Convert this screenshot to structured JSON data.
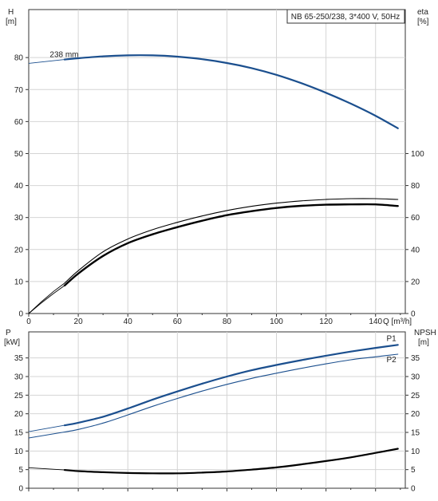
{
  "chart_data": [
    {
      "type": "line",
      "title": "NB 65-250/238, 3*400 V, 50Hz",
      "xlabel": "Q [m³/h]",
      "xlim": [
        0,
        152
      ],
      "xticks": [
        0,
        20,
        40,
        60,
        80,
        100,
        120,
        140
      ],
      "grid": true,
      "left_axis": {
        "label_top": "H",
        "label_unit": "[m]",
        "ylim": [
          0,
          95
        ],
        "ticks": [
          0,
          10,
          20,
          30,
          40,
          50,
          60,
          70,
          80
        ]
      },
      "right_axis": {
        "label_top": "eta",
        "label_unit": "[%]",
        "ylim": [
          0,
          190
        ],
        "ticks": [
          0,
          20,
          40,
          60,
          80,
          100
        ]
      },
      "series": [
        {
          "name": "238 mm",
          "axis": "left",
          "color": "#1b4f8e",
          "width": 2.2,
          "style": "bold-from-start",
          "thin_points": [
            [
              0,
              78.2
            ],
            [
              14.5,
              79.4
            ]
          ],
          "points": [
            [
              14.5,
              79.4
            ],
            [
              20,
              79.8
            ],
            [
              30,
              80.4
            ],
            [
              40,
              80.7
            ],
            [
              50,
              80.7
            ],
            [
              60,
              80.3
            ],
            [
              70,
              79.5
            ],
            [
              80,
              78.3
            ],
            [
              90,
              76.7
            ],
            [
              100,
              74.6
            ],
            [
              110,
              72.0
            ],
            [
              120,
              69.0
            ],
            [
              130,
              65.6
            ],
            [
              140,
              61.8
            ],
            [
              149,
              57.9
            ]
          ]
        },
        {
          "axis": "right",
          "color": "#000000",
          "width": 2.4,
          "thin_points": [
            [
              0,
              0
            ],
            [
              5,
              6.5
            ],
            [
              10,
              12.5
            ],
            [
              14.5,
              17.5
            ]
          ],
          "points": [
            [
              14.5,
              17.5
            ],
            [
              20,
              25
            ],
            [
              30,
              36
            ],
            [
              40,
              44
            ],
            [
              50,
              49.5
            ],
            [
              60,
              54
            ],
            [
              70,
              58
            ],
            [
              80,
              61.5
            ],
            [
              90,
              64
            ],
            [
              100,
              66
            ],
            [
              110,
              67.3
            ],
            [
              120,
              68
            ],
            [
              130,
              68.2
            ],
            [
              140,
              68.2
            ],
            [
              149,
              67.2
            ]
          ]
        },
        {
          "axis": "right",
          "color": "#000000",
          "width": 1.1,
          "thin_points": [
            [
              0,
              0
            ],
            [
              5,
              7.2
            ],
            [
              10,
              13.8
            ],
            [
              14.5,
              19
            ]
          ],
          "points": [
            [
              14.5,
              19
            ],
            [
              20,
              26.8
            ],
            [
              30,
              38.6
            ],
            [
              40,
              46.6
            ],
            [
              50,
              52.4
            ],
            [
              60,
              57
            ],
            [
              70,
              61
            ],
            [
              80,
              64.4
            ],
            [
              90,
              67
            ],
            [
              100,
              69
            ],
            [
              110,
              70.4
            ],
            [
              120,
              71.3
            ],
            [
              130,
              71.8
            ],
            [
              140,
              71.8
            ],
            [
              149,
              71.3
            ]
          ]
        }
      ]
    },
    {
      "type": "line",
      "xlim": [
        0,
        152
      ],
      "xticks": [
        0,
        20,
        40,
        60,
        80,
        100,
        120,
        140
      ],
      "grid": true,
      "left_axis": {
        "label_top": "P",
        "label_unit": "[kW]",
        "ylim": [
          0,
          42
        ],
        "ticks": [
          0,
          5,
          10,
          15,
          20,
          25,
          30,
          35
        ]
      },
      "right_axis": {
        "label_top": "NPSH",
        "label_unit": "[m]",
        "ylim": [
          0,
          42
        ],
        "ticks": [
          0,
          5,
          10,
          15,
          20,
          25,
          30,
          35
        ]
      },
      "series": [
        {
          "name": "P1",
          "axis": "left",
          "color": "#1b4f8e",
          "width": 2.2,
          "thin_points": [
            [
              0,
              15.2
            ],
            [
              14.5,
              16.9
            ]
          ],
          "points": [
            [
              14.5,
              16.9
            ],
            [
              20,
              17.6
            ],
            [
              30,
              19.2
            ],
            [
              40,
              21.4
            ],
            [
              50,
              23.8
            ],
            [
              60,
              26
            ],
            [
              70,
              28.1
            ],
            [
              80,
              30
            ],
            [
              90,
              31.7
            ],
            [
              100,
              33.1
            ],
            [
              110,
              34.4
            ],
            [
              120,
              35.6
            ],
            [
              130,
              36.7
            ],
            [
              140,
              37.7
            ],
            [
              149,
              38.5
            ]
          ]
        },
        {
          "name": "P2",
          "axis": "left",
          "color": "#1b4f8e",
          "width": 1.1,
          "thin_points": [
            [
              0,
              13.5
            ],
            [
              14.5,
              15.1
            ]
          ],
          "points": [
            [
              14.5,
              15.1
            ],
            [
              20,
              15.8
            ],
            [
              30,
              17.5
            ],
            [
              40,
              19.7
            ],
            [
              50,
              22
            ],
            [
              60,
              24.1
            ],
            [
              70,
              26.1
            ],
            [
              80,
              27.9
            ],
            [
              90,
              29.5
            ],
            [
              100,
              30.9
            ],
            [
              110,
              32.2
            ],
            [
              120,
              33.4
            ],
            [
              130,
              34.5
            ],
            [
              140,
              35.3
            ],
            [
              149,
              36
            ]
          ]
        },
        {
          "axis": "right",
          "color": "#000000",
          "width": 2.2,
          "thin_points": [
            [
              0,
              5.5
            ],
            [
              14.5,
              4.9
            ]
          ],
          "points": [
            [
              14.5,
              4.9
            ],
            [
              20,
              4.6
            ],
            [
              30,
              4.3
            ],
            [
              40,
              4.1
            ],
            [
              50,
              4.0
            ],
            [
              60,
              4.0
            ],
            [
              70,
              4.2
            ],
            [
              80,
              4.5
            ],
            [
              90,
              5
            ],
            [
              100,
              5.6
            ],
            [
              110,
              6.4
            ],
            [
              120,
              7.3
            ],
            [
              130,
              8.3
            ],
            [
              140,
              9.5
            ],
            [
              149,
              10.6
            ]
          ]
        }
      ]
    }
  ]
}
